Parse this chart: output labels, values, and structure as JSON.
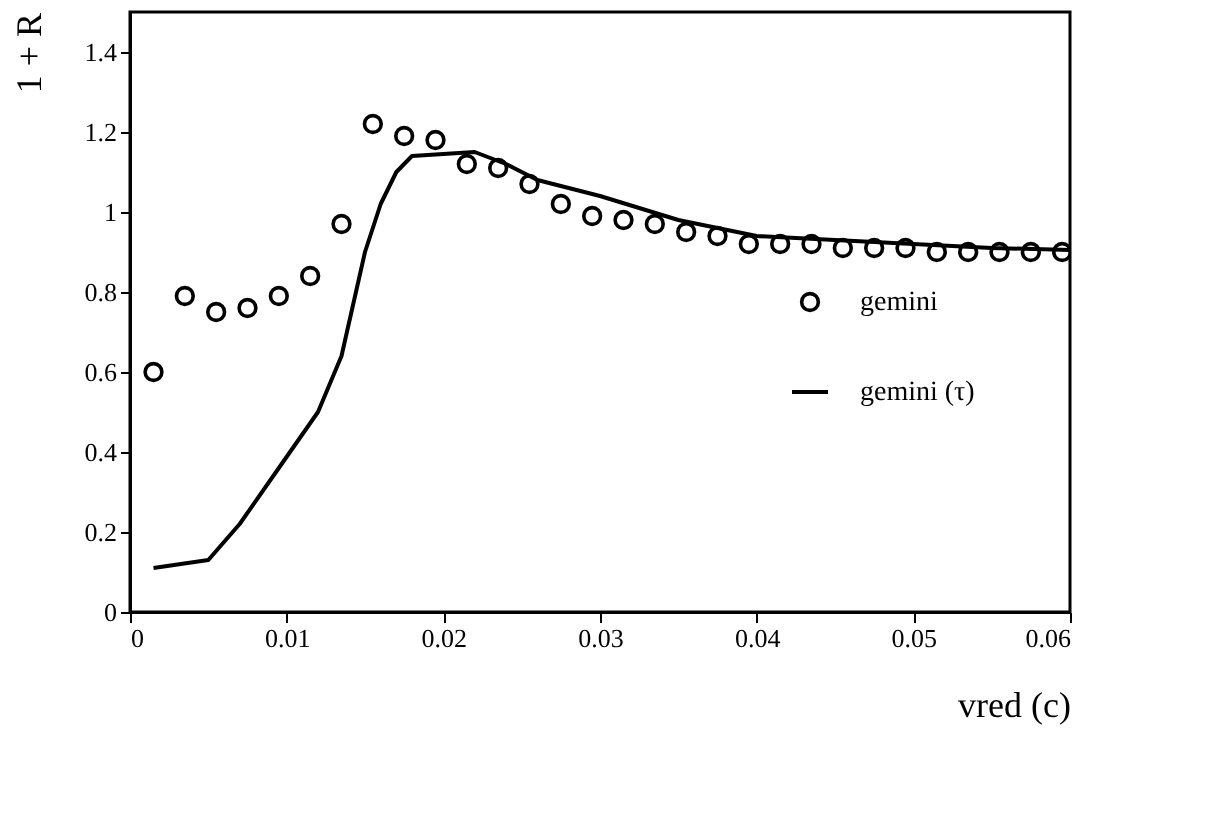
{
  "chart_data": {
    "type": "scatter",
    "xlabel": "vred (c)",
    "ylabel": "1 + R",
    "xlim": [
      0,
      0.06
    ],
    "ylim": [
      0,
      1.5
    ],
    "xticks": [
      0,
      0.01,
      0.02,
      0.03,
      0.04,
      0.05,
      0.06
    ],
    "yticks": [
      0,
      0.2,
      0.4,
      0.6,
      0.8,
      1,
      1.2,
      1.4
    ],
    "grid": false,
    "legend": "right",
    "series": [
      {
        "name": "gemini",
        "marker": "circle",
        "color": "#000000",
        "x": [
          0.0015,
          0.0035,
          0.0055,
          0.0075,
          0.0095,
          0.0115,
          0.0135,
          0.0155,
          0.0175,
          0.0195,
          0.0215,
          0.0235,
          0.0255,
          0.0275,
          0.0295,
          0.0315,
          0.0335,
          0.0355,
          0.0375,
          0.0395,
          0.0415,
          0.0435,
          0.0455,
          0.0475,
          0.0495,
          0.0515,
          0.0535,
          0.0555,
          0.0575,
          0.0595
        ],
        "values": [
          0.6,
          0.79,
          0.75,
          0.76,
          0.79,
          0.84,
          0.97,
          1.22,
          1.19,
          1.18,
          1.12,
          1.11,
          1.07,
          1.02,
          0.99,
          0.98,
          0.97,
          0.95,
          0.94,
          0.92,
          0.92,
          0.92,
          0.91,
          0.91,
          0.91,
          0.9,
          0.9,
          0.9,
          0.9,
          0.9
        ]
      },
      {
        "name": "gemini (τ)",
        "type": "line",
        "line_style": "solid",
        "color": "#000000",
        "x": [
          0.0015,
          0.005,
          0.007,
          0.0095,
          0.012,
          0.0135,
          0.015,
          0.016,
          0.017,
          0.018,
          0.02,
          0.022,
          0.024,
          0.026,
          0.03,
          0.035,
          0.04,
          0.045,
          0.05,
          0.055,
          0.06
        ],
        "values": [
          0.11,
          0.13,
          0.22,
          0.36,
          0.5,
          0.64,
          0.9,
          1.02,
          1.1,
          1.14,
          1.145,
          1.15,
          1.12,
          1.08,
          1.04,
          0.98,
          0.94,
          0.93,
          0.92,
          0.91,
          0.905
        ]
      }
    ]
  }
}
